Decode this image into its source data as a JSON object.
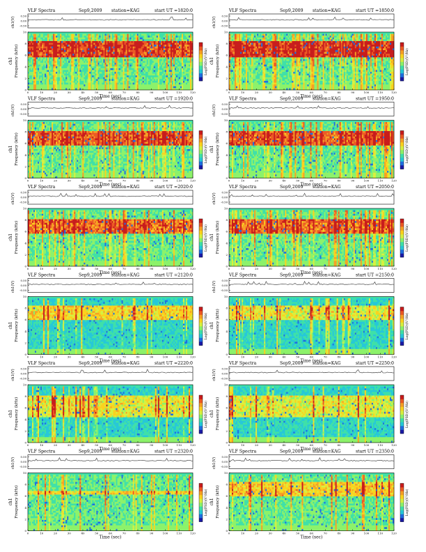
{
  "colors": {
    "scale": [
      "#1a1aa6",
      "#1f6fe0",
      "#26c8d8",
      "#3fe0a8",
      "#8cf26a",
      "#d8f040",
      "#fbd21e",
      "#f6a025",
      "#ec5a24",
      "#c81c1c"
    ],
    "trace": "#333333"
  },
  "labels": {
    "instrument": "VLF Spectra",
    "date": "Sep9,2009",
    "station": "station=KAG",
    "top_ylabel": "ch1(V)",
    "channel": "ch1",
    "spec_ylabel": "Frequency (kHz)",
    "xlabel": "Time (sec)",
    "cbar_label": "Log(PSD)(V²/Hz)"
  },
  "chart_data": [
    {
      "type": "heatmap",
      "title": "start UT =1820:0",
      "xlim": [
        0,
        120
      ],
      "ylim": [
        0,
        10
      ],
      "xticks": [
        0,
        10,
        20,
        30,
        40,
        50,
        60,
        70,
        80,
        90,
        100,
        110,
        120
      ],
      "yticks": [
        0,
        2,
        4,
        6,
        8,
        10
      ],
      "trace_yticks": [
        "0.50",
        "0.00",
        "-0.50"
      ],
      "activity": 0.95,
      "base_level": 3,
      "band_khz": [
        5.5,
        8.5
      ]
    },
    {
      "type": "heatmap",
      "title": "start UT =1850:0",
      "xlim": [
        0,
        120
      ],
      "ylim": [
        0,
        10
      ],
      "xticks": [
        0,
        10,
        20,
        30,
        40,
        50,
        60,
        70,
        80,
        90,
        100,
        110,
        120
      ],
      "yticks": [
        0,
        2,
        4,
        6,
        8,
        10
      ],
      "trace_yticks": [
        "0.50",
        "0.00",
        "-0.50"
      ],
      "activity": 0.95,
      "base_level": 3,
      "band_khz": [
        5.5,
        8.5
      ]
    },
    {
      "type": "heatmap",
      "title": "start UT =1920:0",
      "xlim": [
        0,
        120
      ],
      "ylim": [
        0,
        10
      ],
      "xticks": [
        0,
        10,
        20,
        30,
        40,
        50,
        60,
        70,
        80,
        90,
        100,
        110,
        120
      ],
      "yticks": [
        0,
        2,
        4,
        6,
        8,
        10
      ],
      "trace_yticks": [
        "0.50",
        "0.00",
        "-0.50"
      ],
      "activity": 0.85,
      "base_level": 3,
      "band_khz": [
        5.5,
        8.0
      ]
    },
    {
      "type": "heatmap",
      "title": "start UT =1950:0",
      "xlim": [
        0,
        120
      ],
      "ylim": [
        0,
        10
      ],
      "xticks": [
        0,
        10,
        20,
        30,
        40,
        50,
        60,
        70,
        80,
        90,
        100,
        110,
        120
      ],
      "yticks": [
        0,
        2,
        4,
        6,
        8,
        10
      ],
      "trace_yticks": [
        "0.50",
        "0.00",
        "-0.50"
      ],
      "activity": 0.85,
      "base_level": 3,
      "band_khz": [
        5.5,
        8.0
      ]
    },
    {
      "type": "heatmap",
      "title": "start UT =2020:0",
      "xlim": [
        0,
        120
      ],
      "ylim": [
        0,
        10
      ],
      "xticks": [
        0,
        10,
        20,
        30,
        40,
        50,
        60,
        70,
        80,
        90,
        100,
        110,
        120
      ],
      "yticks": [
        0,
        2,
        4,
        6,
        8,
        10
      ],
      "trace_yticks": [
        "0.50",
        "0.00",
        "-0.50"
      ],
      "activity": 0.8,
      "base_level": 3,
      "band_khz": [
        5.5,
        8.0
      ]
    },
    {
      "type": "heatmap",
      "title": "start UT =2050:0",
      "xlim": [
        0,
        120
      ],
      "ylim": [
        0,
        10
      ],
      "xticks": [
        0,
        10,
        20,
        30,
        40,
        50,
        60,
        70,
        80,
        90,
        100,
        110,
        120
      ],
      "yticks": [
        0,
        2,
        4,
        6,
        8,
        10
      ],
      "trace_yticks": [
        "0.50",
        "0.00",
        "-0.50"
      ],
      "activity": 0.8,
      "base_level": 3,
      "band_khz": [
        5.5,
        8.0
      ]
    },
    {
      "type": "heatmap",
      "title": "start UT =2120:0",
      "xlim": [
        0,
        120
      ],
      "ylim": [
        0,
        10
      ],
      "xticks": [
        0,
        10,
        20,
        30,
        40,
        50,
        60,
        70,
        80,
        90,
        100,
        110,
        120
      ],
      "yticks": [
        0,
        2,
        4,
        6,
        8,
        10
      ],
      "trace_yticks": [
        "0.50",
        "0.00",
        "-0.50"
      ],
      "activity": 0.6,
      "base_level": 2,
      "band_khz": [
        6.0,
        8.5
      ]
    },
    {
      "type": "heatmap",
      "title": "start UT =2150:0",
      "xlim": [
        0,
        120
      ],
      "ylim": [
        0,
        10
      ],
      "xticks": [
        0,
        10,
        20,
        30,
        40,
        50,
        60,
        70,
        80,
        90,
        100,
        110,
        120
      ],
      "yticks": [
        0,
        2,
        4,
        6,
        8,
        10
      ],
      "trace_yticks": [
        "0.50",
        "0.00",
        "-0.50"
      ],
      "activity": 0.45,
      "base_level": 2,
      "band_khz": [
        6.0,
        8.5
      ]
    },
    {
      "type": "heatmap",
      "title": "start UT =2220:0",
      "xlim": [
        0,
        120
      ],
      "ylim": [
        0,
        10
      ],
      "xticks": [
        0,
        10,
        20,
        30,
        40,
        50,
        60,
        70,
        80,
        90,
        100,
        110,
        120
      ],
      "yticks": [
        0,
        2,
        4,
        6,
        8,
        10
      ],
      "trace_yticks": [
        "0.50",
        "0.00",
        "-0.50"
      ],
      "activity": 0.45,
      "base_level": 2,
      "band_khz": [
        4.5,
        8.0
      ]
    },
    {
      "type": "heatmap",
      "title": "start UT =2250:0",
      "xlim": [
        0,
        120
      ],
      "ylim": [
        0,
        10
      ],
      "xticks": [
        0,
        10,
        20,
        30,
        40,
        50,
        60,
        70,
        80,
        90,
        100,
        110,
        120
      ],
      "yticks": [
        0,
        2,
        4,
        6,
        8,
        10
      ],
      "trace_yticks": [
        "0.50",
        "0.00",
        "-0.50"
      ],
      "activity": 0.4,
      "base_level": 2,
      "band_khz": [
        4.5,
        8.0
      ]
    },
    {
      "type": "heatmap",
      "title": "start UT =2320:0",
      "xlim": [
        0,
        120
      ],
      "ylim": [
        0,
        10
      ],
      "xticks": [
        0,
        10,
        20,
        30,
        40,
        50,
        60,
        70,
        80,
        90,
        100,
        110,
        120
      ],
      "yticks": [
        0,
        2,
        4,
        6,
        8,
        10
      ],
      "trace_yticks": [
        "0.50",
        "0.00",
        "-0.50"
      ],
      "activity": 0.35,
      "base_level": 3,
      "band_khz": [
        6.2,
        6.9
      ]
    },
    {
      "type": "heatmap",
      "title": "start UT =2350:0",
      "xlim": [
        0,
        120
      ],
      "ylim": [
        0,
        10
      ],
      "xticks": [
        0,
        10,
        20,
        30,
        40,
        50,
        60,
        70,
        80,
        90,
        100,
        110,
        120
      ],
      "yticks": [
        0,
        2,
        4,
        6,
        8,
        10
      ],
      "trace_yticks": [
        "0.50",
        "0.00",
        "-0.50"
      ],
      "activity": 0.4,
      "base_level": 3,
      "band_khz": [
        6.0,
        8.5
      ]
    }
  ]
}
